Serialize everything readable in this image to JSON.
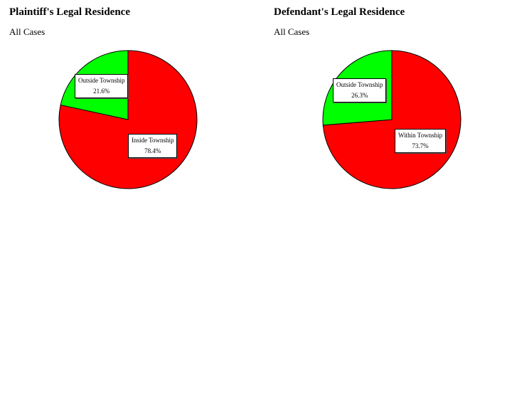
{
  "chart_data": [
    {
      "type": "pie",
      "title": "Plaintiff's Legal Residence",
      "subtitle": "All Cases",
      "slices": [
        {
          "label": "Inside Township",
          "value": 78.4,
          "value_label": "78.4%",
          "color": "#ff0000"
        },
        {
          "label": "Outside Township",
          "value": 21.6,
          "value_label": "21.6%",
          "color": "#00ff00"
        }
      ]
    },
    {
      "type": "pie",
      "title": "Defendant's Legal Residence",
      "subtitle": "All Cases",
      "slices": [
        {
          "label": "Within Township",
          "value": 73.7,
          "value_label": "73.7%",
          "color": "#ff0000"
        },
        {
          "label": "Outside Township",
          "value": 26.3,
          "value_label": "26.3%",
          "color": "#00ff00"
        }
      ]
    }
  ]
}
